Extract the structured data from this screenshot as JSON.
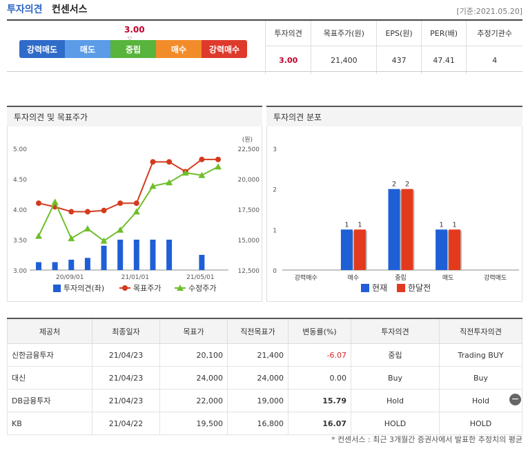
{
  "header": {
    "title": "투자의견",
    "subtitle": "컨센서스",
    "as_of": "[기준:2021.05.20]"
  },
  "scale": {
    "current_value": "3.00",
    "labels": [
      "강력매도",
      "매도",
      "중립",
      "매수",
      "강력매수"
    ],
    "colors": [
      "#2f6bc9",
      "#5b9be8",
      "#58b43c",
      "#f28c2a",
      "#de3a2b"
    ]
  },
  "consensus_table": {
    "headers": [
      "투자의견",
      "목표주가(원)",
      "EPS(원)",
      "PER(배)",
      "추정기관수"
    ],
    "values": [
      "3.00",
      "21,400",
      "437",
      "47.41",
      "4"
    ]
  },
  "chart_data": [
    {
      "type": "line",
      "title": "투자의견 및 목표주가",
      "x_tick_labels": [
        "20/09/01",
        "21/01/01",
        "21/05/01"
      ],
      "ylim_left": [
        3.0,
        5.0
      ],
      "ylim_right": [
        12500,
        22500
      ],
      "left_ticks": [
        "5.00",
        "4.50",
        "4.00",
        "3.50",
        "3.00"
      ],
      "right_ticks": [
        "22,500",
        "20,000",
        "17,500",
        "15,000",
        "12,500"
      ],
      "right_unit": "(원)",
      "series": [
        {
          "name": "투자의견(좌)",
          "kind": "bar",
          "axis": "left",
          "color": "#1e5fd6",
          "values": [
            3.13,
            3.13,
            3.17,
            3.2,
            3.4,
            3.5,
            3.5,
            3.5,
            3.5,
            null,
            3.25,
            null
          ]
        },
        {
          "name": "목표주가",
          "kind": "line",
          "axis": "right",
          "color": "#d43a1d",
          "values": [
            18000,
            17700,
            17300,
            17300,
            17400,
            18000,
            18000,
            21400,
            21400,
            20600,
            21600,
            21600
          ]
        },
        {
          "name": "수정주가",
          "kind": "line",
          "axis": "right",
          "color": "#6fbe2a",
          "values": [
            15300,
            18100,
            15100,
            15900,
            14900,
            15800,
            17300,
            19400,
            19700,
            20500,
            20300,
            21000
          ]
        }
      ],
      "legend": "bottom"
    },
    {
      "type": "bar",
      "title": "투자의견 분포",
      "categories": [
        "강력매수",
        "매수",
        "중립",
        "매도",
        "강력매도"
      ],
      "ylim": [
        0,
        3
      ],
      "y_ticks": [
        "3",
        "2",
        "1",
        "0"
      ],
      "series": [
        {
          "name": "현재",
          "color": "#1e5fd6",
          "values": [
            0,
            1,
            2,
            1,
            0
          ]
        },
        {
          "name": "한달전",
          "color": "#e33a1d",
          "values": [
            0,
            1,
            2,
            1,
            0
          ]
        }
      ],
      "legend": "bottom"
    }
  ],
  "broker_table": {
    "headers": [
      "제공처",
      "최종일자",
      "목표가",
      "직전목표가",
      "변동률(%)",
      "투자의견",
      "직전투자의견"
    ],
    "rows": [
      [
        "신한금융투자",
        "21/04/23",
        "20,100",
        "21,400",
        "-6.07",
        "중립",
        "Trading BUY"
      ],
      [
        "대신",
        "21/04/23",
        "24,000",
        "24,000",
        "0.00",
        "Buy",
        "Buy"
      ],
      [
        "DB금융투자",
        "21/04/23",
        "22,000",
        "19,000",
        "15.79",
        "Hold",
        "Hold"
      ],
      [
        "KB",
        "21/04/22",
        "19,500",
        "16,800",
        "16.07",
        "HOLD",
        "HOLD"
      ]
    ]
  },
  "footnote": "* 컨센서스 : 최근 3개월간 증권사에서 발표한 추정치의 평균"
}
